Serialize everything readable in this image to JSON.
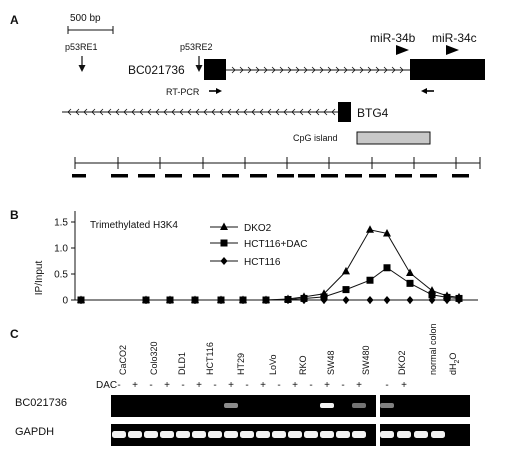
{
  "panel_a": {
    "label": "A",
    "scale_bar": "500 bp",
    "p53re1": "p53RE1",
    "p53re2": "p53RE2",
    "gene_bc": "BC021736",
    "mir34b": "miR-34b",
    "mir34c": "miR-34c",
    "rtpcr": "RT-PCR",
    "btg4": "BTG4",
    "cpg": "CpG island"
  },
  "panel_b": {
    "label": "B",
    "ylabel": "IP/Input",
    "annotation": "Trimethylated H3K4",
    "yticks": [
      "0",
      "0.5",
      "1.0",
      "1.5"
    ]
  },
  "chart_data": {
    "type": "line",
    "title": "Trimethylated H3K4",
    "xlabel": "",
    "ylabel": "IP/Input",
    "ylim": [
      0,
      1.5
    ],
    "x": [
      1,
      2,
      3,
      4,
      5,
      6,
      7,
      8,
      9,
      10,
      11,
      12,
      13,
      14,
      15,
      16,
      17
    ],
    "series": [
      {
        "name": "DKO2",
        "marker": "triangle",
        "values": [
          0,
          0,
          0,
          0,
          0,
          0,
          0,
          0.02,
          0.06,
          0.12,
          0.55,
          1.35,
          1.28,
          0.52,
          0.18,
          0.08,
          0.05
        ]
      },
      {
        "name": "HCT116+DAC",
        "marker": "square",
        "values": [
          0,
          0,
          0,
          0,
          0,
          0,
          0,
          0.01,
          0.03,
          0.06,
          0.2,
          0.38,
          0.62,
          0.32,
          0.1,
          0.05,
          0.03
        ]
      },
      {
        "name": "HCT116",
        "marker": "diamond",
        "values": [
          0,
          0,
          0,
          0,
          0,
          0,
          0,
          0,
          0,
          0,
          0,
          0,
          0,
          0,
          0,
          0,
          0
        ]
      }
    ]
  },
  "panel_c": {
    "label": "C",
    "dac_label": "DAC",
    "minus": "-",
    "plus": "+",
    "cell_lines": [
      "CaCO2",
      "Colo320",
      "DLD1",
      "HCT116",
      "HT29",
      "LoVo",
      "RKO",
      "SW48",
      "SW480",
      "DKO2",
      "normal colon"
    ],
    "water_main": "dH",
    "water_sub": "2",
    "water_end": "O",
    "row_labels": [
      "BC021736",
      "GAPDH"
    ]
  }
}
